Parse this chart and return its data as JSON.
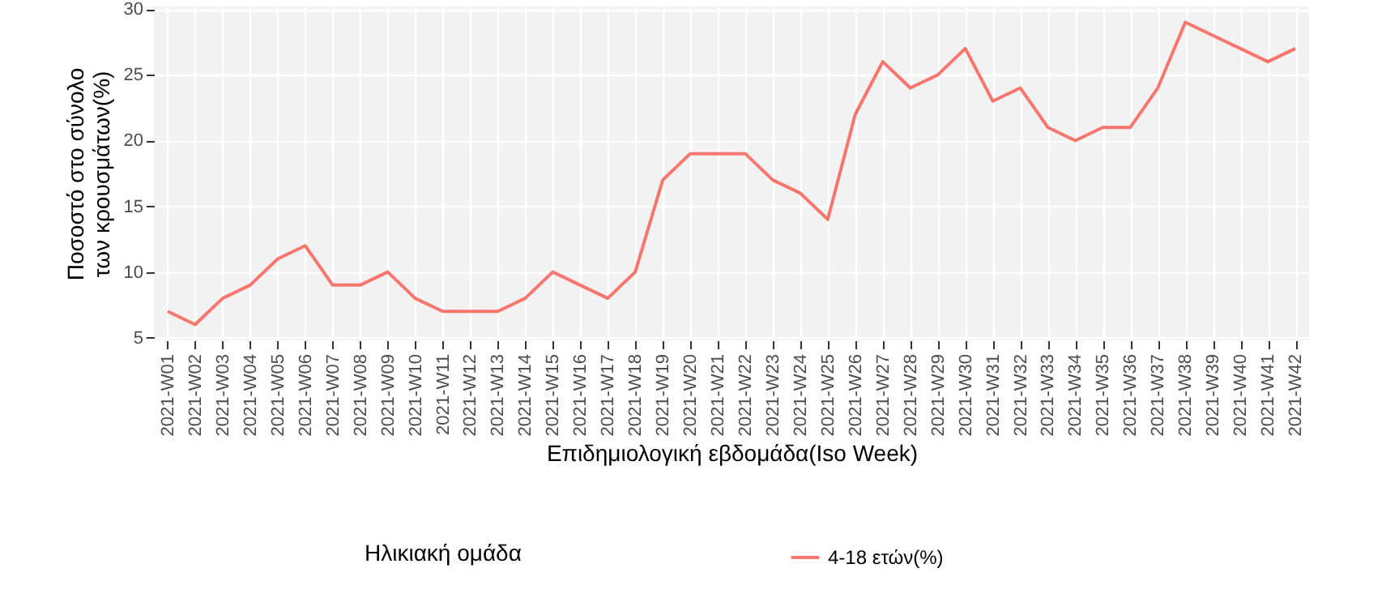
{
  "chart_data": {
    "type": "line",
    "xlabel": "Επιδημιολογική εβδομάδα(Iso Week)",
    "ylabel": "Ποσοστό στο σύνολο\nτων κρουσμάτων(%)",
    "legend_title": "Ηλικιακή ομάδα",
    "categories": [
      "2021-W01",
      "2021-W02",
      "2021-W03",
      "2021-W04",
      "2021-W05",
      "2021-W06",
      "2021-W07",
      "2021-W08",
      "2021-W09",
      "2021-W10",
      "2021-W11",
      "2021-W12",
      "2021-W13",
      "2021-W14",
      "2021-W15",
      "2021-W16",
      "2021-W17",
      "2021-W18",
      "2021-W19",
      "2021-W20",
      "2021-W21",
      "2021-W22",
      "2021-W23",
      "2021-W24",
      "2021-W25",
      "2021-W26",
      "2021-W27",
      "2021-W28",
      "2021-W29",
      "2021-W30",
      "2021-W31",
      "2021-W32",
      "2021-W33",
      "2021-W34",
      "2021-W35",
      "2021-W36",
      "2021-W37",
      "2021-W38",
      "2021-W39",
      "2021-W40",
      "2021-W41",
      "2021-W42"
    ],
    "series": [
      {
        "name": "4-18 ετών(%)",
        "color": "#f8766d",
        "values": [
          7,
          6,
          8,
          9,
          11,
          12,
          9,
          9,
          10,
          8,
          7,
          7,
          7,
          8,
          10,
          9,
          8,
          10,
          17,
          19,
          19,
          19,
          17,
          16,
          14,
          22,
          26,
          24,
          25,
          27,
          23,
          24,
          21,
          20,
          21,
          21,
          24,
          29,
          28,
          27,
          26,
          27
        ]
      }
    ],
    "ylim": [
      4.8,
      30.2
    ],
    "yticks": [
      5,
      10,
      15,
      20,
      25,
      30
    ],
    "grid": true,
    "legend": "bottom",
    "marker": "none",
    "line_style": "solid"
  }
}
